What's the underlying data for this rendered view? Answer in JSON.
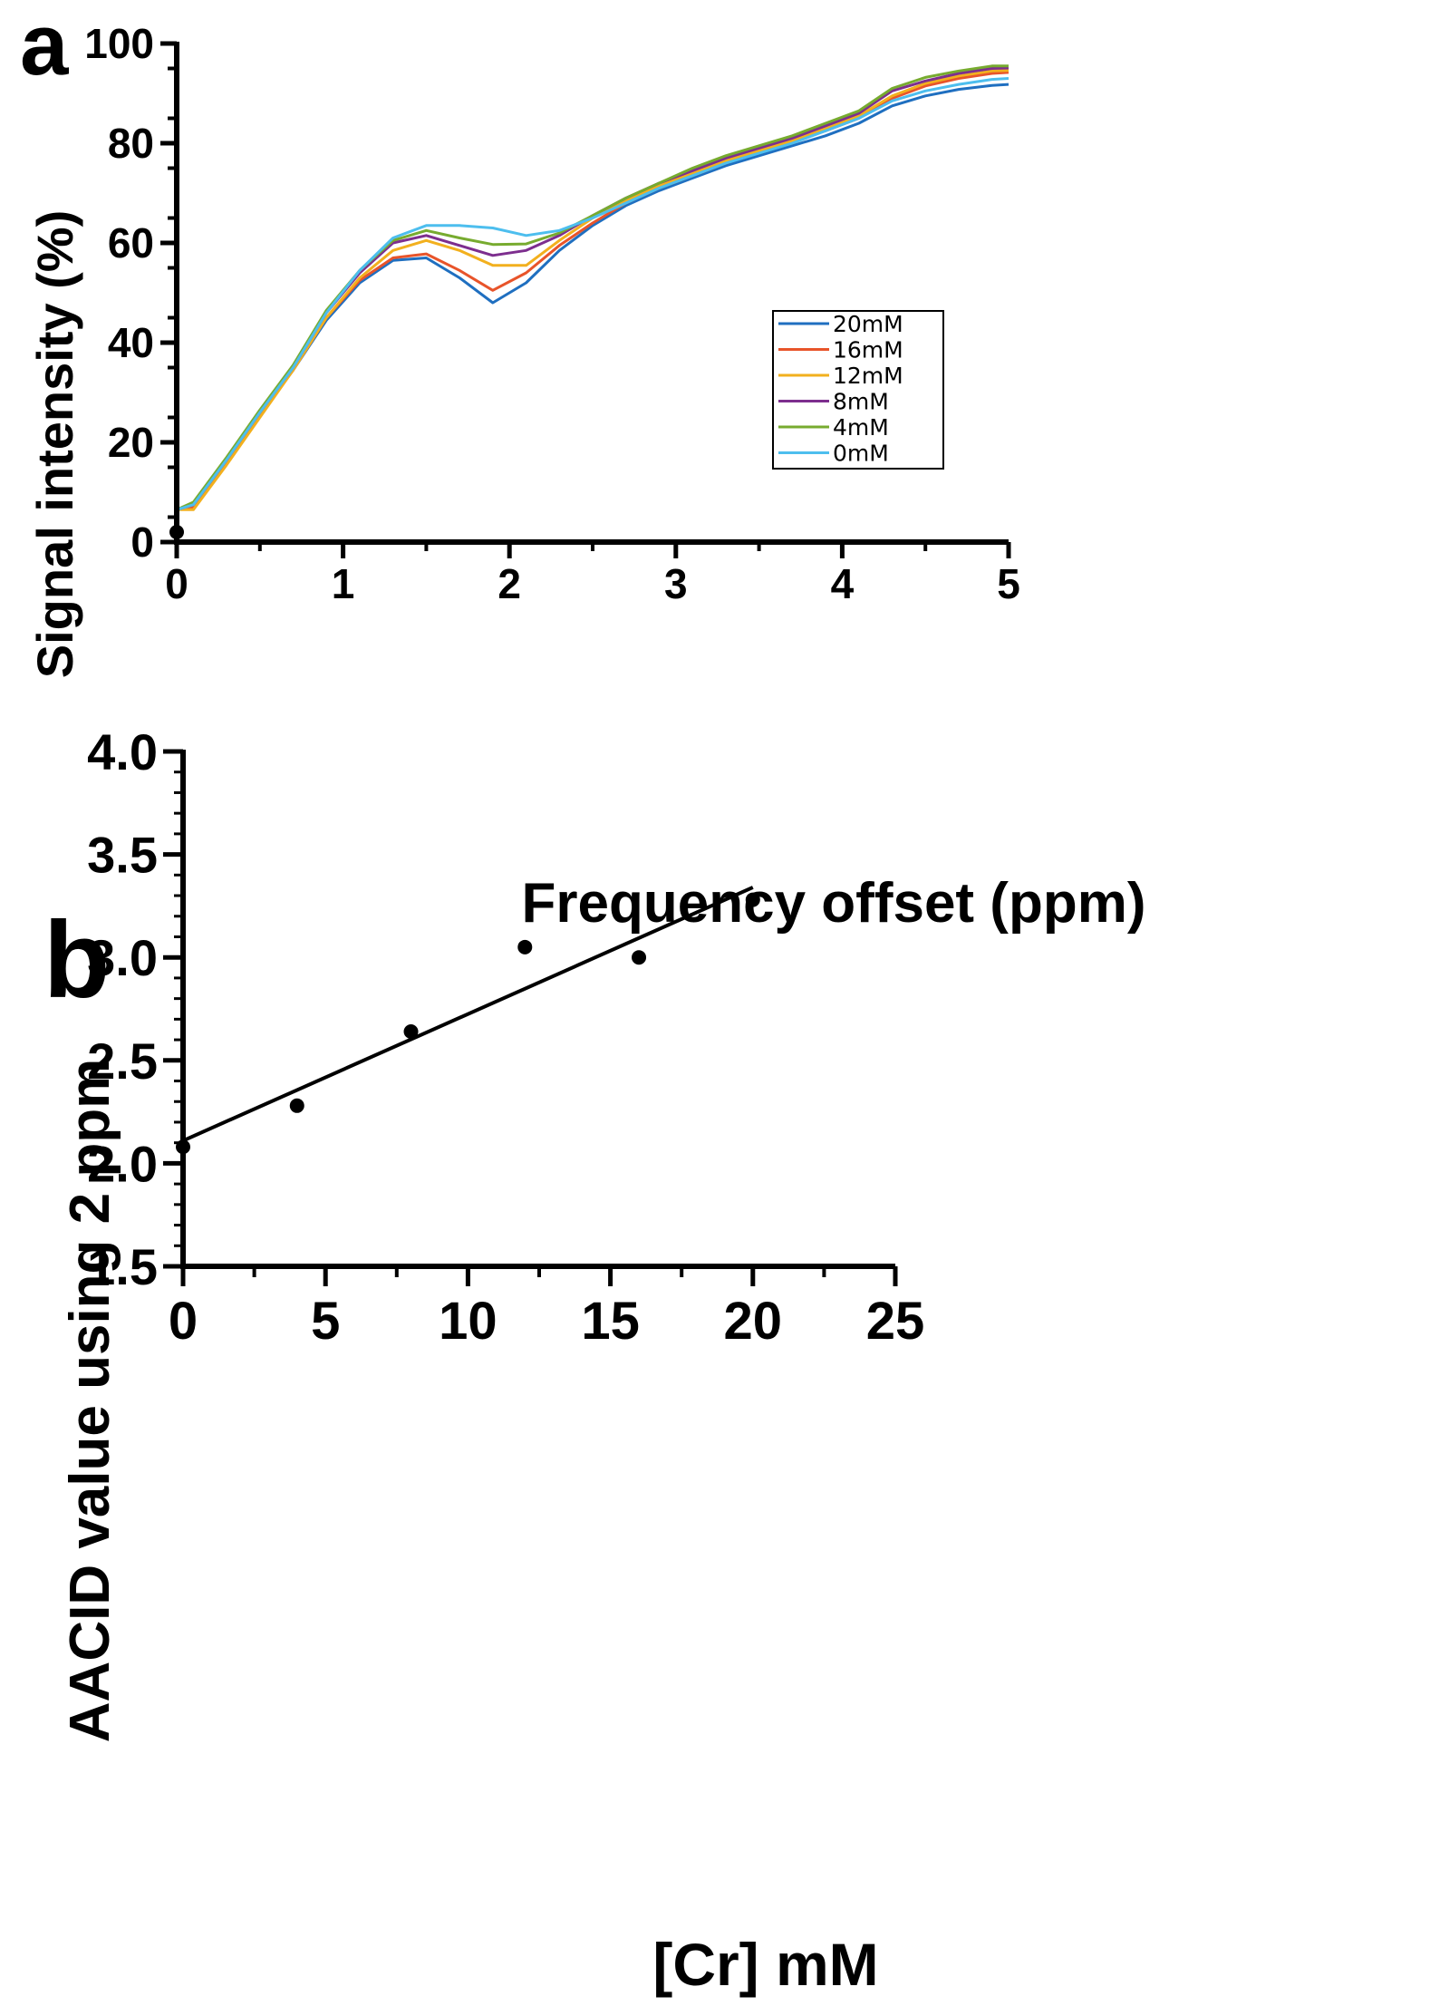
{
  "chart_data": [
    {
      "panel_label": "a",
      "type": "line",
      "xlabel": "Frequency offset (ppm)",
      "ylabel": "Signal intensity (%)",
      "xlim": [
        0,
        5
      ],
      "ylim": [
        0,
        100
      ],
      "xticks": [
        "0",
        "1",
        "2",
        "3",
        "4",
        "5"
      ],
      "yticks": [
        "0",
        "20",
        "40",
        "60",
        "80",
        "100"
      ],
      "grid": false,
      "legend_position": "center-right",
      "x": [
        0,
        0.1,
        0.3,
        0.5,
        0.7,
        0.9,
        1.1,
        1.3,
        1.5,
        1.7,
        1.9,
        2.1,
        2.3,
        2.5,
        2.7,
        2.9,
        3.1,
        3.3,
        3.5,
        3.7,
        3.9,
        4.1,
        4.3,
        4.5,
        4.7,
        4.9,
        5.0
      ],
      "marker_point": {
        "x": 0,
        "y": 2
      },
      "series": [
        {
          "name": "20mM",
          "color": "#1f6fc0",
          "values": [
            6.5,
            7,
            16,
            25.5,
            34.5,
            44.5,
            52,
            56.5,
            57,
            53,
            48,
            52,
            58.5,
            63.5,
            67.5,
            70.5,
            73,
            75.5,
            77.5,
            79.5,
            81.5,
            84,
            87.5,
            89.5,
            90.8,
            91.6,
            91.8
          ]
        },
        {
          "name": "16mM",
          "color": "#e8542a",
          "values": [
            6.5,
            7,
            16,
            25.5,
            34.5,
            45,
            52.5,
            57,
            57.8,
            54.5,
            50.5,
            54,
            59.5,
            64,
            68,
            71,
            73.5,
            76,
            78.5,
            80.5,
            82.5,
            85,
            89,
            91.5,
            93,
            94,
            94.2
          ]
        },
        {
          "name": "12mM",
          "color": "#f2b01e",
          "values": [
            6.5,
            6.5,
            15.5,
            25,
            34.5,
            45,
            53,
            58.5,
            60.5,
            58.5,
            55.5,
            55.5,
            60.5,
            65,
            68.5,
            71.5,
            74,
            76.5,
            78.5,
            80.5,
            83,
            85.5,
            89.5,
            92,
            93.5,
            94.5,
            94.6
          ]
        },
        {
          "name": "8mM",
          "color": "#7d2e8e",
          "values": [
            6.5,
            7.5,
            16.5,
            26,
            35,
            46,
            54,
            60,
            61.5,
            59.5,
            57.5,
            58.5,
            61.5,
            65.5,
            69,
            72,
            74.5,
            77,
            79,
            81,
            83.5,
            86,
            90.5,
            92.5,
            94,
            95,
            95.1
          ]
        },
        {
          "name": "4mM",
          "color": "#77ab2f",
          "values": [
            6.5,
            8,
            17,
            26.5,
            35.5,
            46.5,
            54.5,
            60.5,
            62.5,
            61,
            59.7,
            59.8,
            62,
            65.5,
            69,
            72,
            75,
            77.5,
            79.5,
            81.5,
            84,
            86.5,
            91,
            93.2,
            94.5,
            95.5,
            95.5
          ]
        },
        {
          "name": "0mM",
          "color": "#4dbeee",
          "values": [
            6.5,
            7.5,
            16.5,
            26,
            35,
            46,
            54.5,
            61,
            63.5,
            63.5,
            63,
            61.5,
            62.5,
            65,
            68,
            71,
            73.5,
            76,
            78,
            80,
            82.5,
            85,
            88.5,
            90.5,
            91.8,
            92.8,
            93
          ]
        }
      ]
    },
    {
      "panel_label": "b",
      "type": "scatter",
      "xlabel": "[Cr] mM",
      "ylabel": "AACID value using 2 ppm",
      "xlim": [
        0,
        25
      ],
      "ylim": [
        1.5,
        4.0
      ],
      "xticks": [
        "0",
        "5",
        "10",
        "15",
        "20",
        "25"
      ],
      "yticks": [
        "1.5",
        "2.0",
        "2.5",
        "3.0",
        "3.5",
        "4.0"
      ],
      "grid": false,
      "points": {
        "x": [
          0,
          4,
          8,
          12,
          16,
          20
        ],
        "y": [
          2.08,
          2.28,
          2.64,
          3.05,
          3.0,
          3.28
        ]
      },
      "fit_line": {
        "x": [
          0,
          20
        ],
        "y": [
          2.11,
          3.34
        ]
      }
    }
  ]
}
